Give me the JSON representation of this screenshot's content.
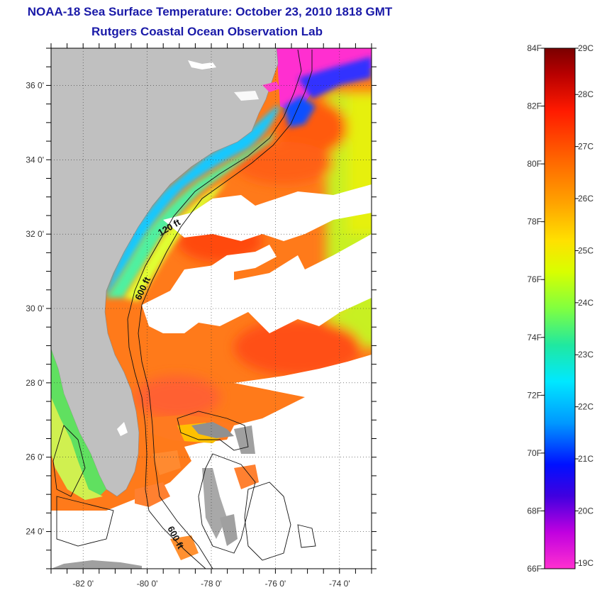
{
  "header": {
    "title": "NOAA-18 Sea Surface Temperature:  October 23, 2010 1818 GMT",
    "subtitle": "Rutgers Coastal Ocean Observation Lab"
  },
  "map": {
    "lon_range": [
      -83,
      -73
    ],
    "lat_range": [
      23,
      37
    ],
    "lat_ticks": [
      "36 0'",
      "34 0'",
      "32 0'",
      "30 0'",
      "28 0'",
      "26 0'",
      "24 0'"
    ],
    "lat_values": [
      36,
      34,
      32,
      30,
      28,
      26,
      24
    ],
    "lon_ticks": [
      "-82 0'",
      "-80 0'",
      "-78 0'",
      "-76 0'",
      "-74 0'"
    ],
    "lon_values": [
      -82,
      -80,
      -78,
      -76,
      -74
    ],
    "contour_labels": [
      "120 ft",
      "600 ft",
      "600 ft"
    ],
    "land_color": "#c0c0c0",
    "cloud_color": "#ffffff"
  },
  "colorbar": {
    "f_labels": [
      "84F",
      "82F",
      "80F",
      "78F",
      "76F",
      "74F",
      "72F",
      "70F",
      "68F",
      "66F"
    ],
    "f_values": [
      84,
      82,
      80,
      78,
      76,
      74,
      72,
      70,
      68,
      66
    ],
    "c_labels": [
      "29C",
      "28C",
      "27C",
      "26C",
      "25C",
      "24C",
      "23C",
      "22C",
      "21C",
      "20C",
      "19C"
    ],
    "c_values": [
      29,
      28,
      27,
      26,
      25,
      24,
      23,
      22,
      21,
      20,
      19
    ],
    "range_f": [
      66,
      84
    ]
  }
}
